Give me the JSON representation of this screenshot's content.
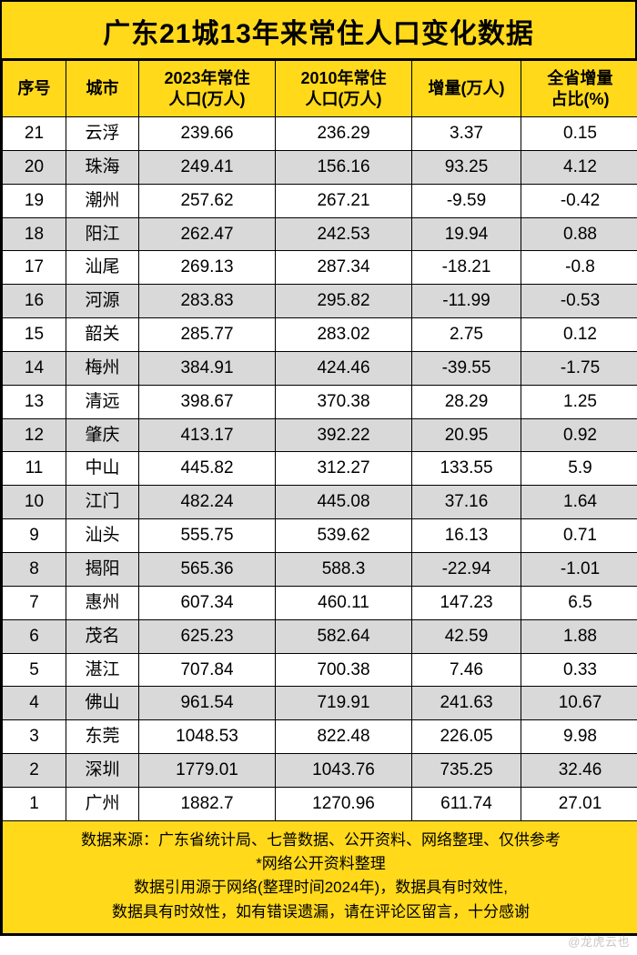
{
  "title": "广东21城13年来常住人口变化数据",
  "columns": [
    "序号",
    "城市",
    "2023年常住\n人口(万人)",
    "2010年常住\n人口(万人)",
    "增量(万人)",
    "全省增量\n占比(%)"
  ],
  "rows": [
    [
      "21",
      "云浮",
      "239.66",
      "236.29",
      "3.37",
      "0.15"
    ],
    [
      "20",
      "珠海",
      "249.41",
      "156.16",
      "93.25",
      "4.12"
    ],
    [
      "19",
      "潮州",
      "257.62",
      "267.21",
      "-9.59",
      "-0.42"
    ],
    [
      "18",
      "阳江",
      "262.47",
      "242.53",
      "19.94",
      "0.88"
    ],
    [
      "17",
      "汕尾",
      "269.13",
      "287.34",
      "-18.21",
      "-0.8"
    ],
    [
      "16",
      "河源",
      "283.83",
      "295.82",
      "-11.99",
      "-0.53"
    ],
    [
      "15",
      "韶关",
      "285.77",
      "283.02",
      "2.75",
      "0.12"
    ],
    [
      "14",
      "梅州",
      "384.91",
      "424.46",
      "-39.55",
      "-1.75"
    ],
    [
      "13",
      "清远",
      "398.67",
      "370.38",
      "28.29",
      "1.25"
    ],
    [
      "12",
      "肇庆",
      "413.17",
      "392.22",
      "20.95",
      "0.92"
    ],
    [
      "11",
      "中山",
      "445.82",
      "312.27",
      "133.55",
      "5.9"
    ],
    [
      "10",
      "江门",
      "482.24",
      "445.08",
      "37.16",
      "1.64"
    ],
    [
      "9",
      "汕头",
      "555.75",
      "539.62",
      "16.13",
      "0.71"
    ],
    [
      "8",
      "揭阳",
      "565.36",
      "588.3",
      "-22.94",
      "-1.01"
    ],
    [
      "7",
      "惠州",
      "607.34",
      "460.11",
      "147.23",
      "6.5"
    ],
    [
      "6",
      "茂名",
      "625.23",
      "582.64",
      "42.59",
      "1.88"
    ],
    [
      "5",
      "湛江",
      "707.84",
      "700.38",
      "7.46",
      "0.33"
    ],
    [
      "4",
      "佛山",
      "961.54",
      "719.91",
      "241.63",
      "10.67"
    ],
    [
      "3",
      "东莞",
      "1048.53",
      "822.48",
      "226.05",
      "9.98"
    ],
    [
      "2",
      "深圳",
      "1779.01",
      "1043.76",
      "735.25",
      "32.46"
    ],
    [
      "1",
      "广州",
      "1882.7",
      "1270.96",
      "611.74",
      "27.01"
    ]
  ],
  "footer_lines": [
    "数据来源：广东省统计局、七普数据、公开资料、网络整理、仅供参考",
    "*网络公开资料整理",
    "数据引用源于网络(整理时间2024年)，数据具有时效性,",
    "数据具有时效性，如有错误遗漏，请在评论区留言，十分感谢"
  ],
  "watermark": "@龙虎云也",
  "colors": {
    "header_bg": "#ffd91a",
    "row_alt_bg": "#d9d9d9",
    "row_bg": "#ffffff",
    "border": "#000000",
    "text": "#000000"
  }
}
